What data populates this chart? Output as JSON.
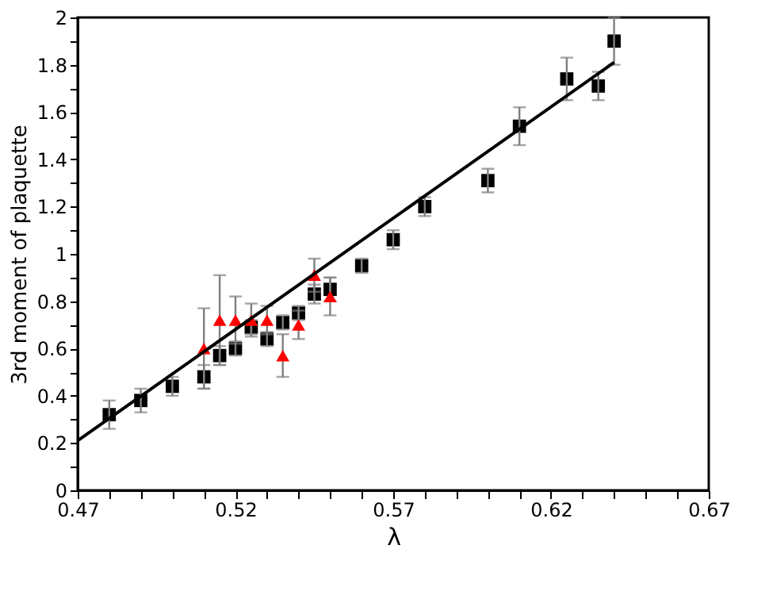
{
  "chart_data": {
    "type": "scatter",
    "xlabel": "λ",
    "ylabel": "3rd moment of plaquette",
    "xlim": [
      0.47,
      0.67
    ],
    "ylim": [
      0,
      2
    ],
    "xticks": [
      0.47,
      {
        "value": 0.48,
        "label": null
      },
      {
        "value": 0.49,
        "label": null
      },
      {
        "value": 0.5,
        "label": null
      },
      {
        "value": 0.51,
        "label": null
      },
      0.52,
      {
        "value": 0.53,
        "label": null
      },
      {
        "value": 0.54,
        "label": null
      },
      {
        "value": 0.55,
        "label": null
      },
      {
        "value": 0.56,
        "label": null
      },
      0.57,
      {
        "value": 0.58,
        "label": null
      },
      {
        "value": 0.59,
        "label": null
      },
      {
        "value": 0.6,
        "label": null
      },
      {
        "value": 0.61,
        "label": null
      },
      0.62,
      {
        "value": 0.63,
        "label": null
      },
      {
        "value": 0.64,
        "label": null
      },
      {
        "value": 0.65,
        "label": null
      },
      {
        "value": 0.66,
        "label": null
      },
      0.67
    ],
    "yticks": [
      0,
      {
        "value": 0.1,
        "label": null
      },
      0.2,
      {
        "value": 0.3,
        "label": null
      },
      0.4,
      {
        "value": 0.5,
        "label": null
      },
      0.6,
      {
        "value": 0.7,
        "label": null
      },
      0.8,
      {
        "value": 0.9,
        "label": null
      },
      1,
      {
        "value": 1.1,
        "label": null
      },
      1.2,
      {
        "value": 1.3,
        "label": null
      },
      1.4,
      {
        "value": 1.5,
        "label": null
      },
      1.6,
      {
        "value": 1.7,
        "label": null
      },
      1.8,
      {
        "value": 1.9,
        "label": null
      },
      2
    ],
    "grid": false,
    "series": [
      {
        "type": "scatter",
        "marker": "square",
        "color": "#000000",
        "x": [
          0.48,
          0.49,
          0.5,
          0.51,
          0.515,
          0.52,
          0.525,
          0.53,
          0.535,
          0.54,
          0.545,
          0.55,
          0.56,
          0.57,
          0.58,
          0.6,
          0.61,
          0.625,
          0.635,
          0.64
        ],
        "values": [
          0.32,
          0.38,
          0.44,
          0.48,
          0.57,
          0.6,
          0.69,
          0.64,
          0.71,
          0.75,
          0.83,
          0.85,
          0.95,
          1.06,
          1.2,
          1.31,
          1.54,
          1.74,
          1.71,
          1.9
        ],
        "errors": [
          0.06,
          0.05,
          0.04,
          0.05,
          0.04,
          0.03,
          0.03,
          0.03,
          0.03,
          0.03,
          0.04,
          0.05,
          0.03,
          0.04,
          0.04,
          0.05,
          0.08,
          0.09,
          0.06,
          0.1
        ]
      },
      {
        "type": "scatter",
        "marker": "triangle",
        "color": "#ff0000",
        "x": [
          0.51,
          0.515,
          0.52,
          0.525,
          0.53,
          0.535,
          0.54,
          0.545,
          0.55
        ],
        "values": [
          0.6,
          0.72,
          0.72,
          0.72,
          0.72,
          0.57,
          0.7,
          0.91,
          0.82
        ],
        "errors": [
          0.17,
          0.19,
          0.1,
          0.07,
          0.06,
          0.09,
          0.06,
          0.07,
          0.08
        ]
      },
      {
        "type": "line",
        "marker": "none",
        "line_style": "solid",
        "color": "#000000",
        "x": [
          0.47,
          0.64
        ],
        "values": [
          0.21,
          1.81
        ]
      }
    ]
  }
}
